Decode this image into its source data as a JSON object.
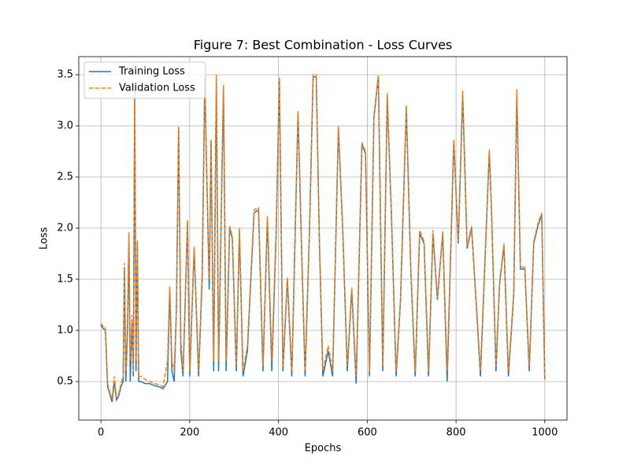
{
  "chart_data": {
    "type": "line",
    "title": "Figure 7: Best Combination - Loss Curves",
    "x_label": "Epochs",
    "y_label": "Loss",
    "x": [
      0,
      5,
      10,
      15,
      20,
      25,
      30,
      35,
      40,
      45,
      50,
      53,
      56,
      60,
      63,
      66,
      70,
      73,
      76,
      79,
      82,
      85,
      90,
      100,
      110,
      120,
      130,
      140,
      150,
      155,
      160,
      165,
      170,
      175,
      180,
      185,
      195,
      200,
      210,
      220,
      228,
      234,
      238,
      244,
      248,
      254,
      260,
      265,
      276,
      282,
      290,
      296,
      305,
      312,
      320,
      330,
      345,
      355,
      365,
      375,
      385,
      395,
      402,
      410,
      420,
      430,
      444,
      452,
      460,
      470,
      478,
      485,
      492,
      500,
      512,
      522,
      535,
      545,
      555,
      565,
      575,
      588,
      596,
      605,
      615,
      625,
      635,
      645,
      655,
      665,
      675,
      688,
      698,
      708,
      718,
      728,
      738,
      748,
      758,
      770,
      780,
      795,
      805,
      815,
      825,
      835,
      845,
      855,
      875,
      880,
      890,
      898,
      908,
      918,
      930,
      937,
      945,
      955,
      965,
      975,
      985,
      993,
      1000
    ],
    "series": [
      {
        "name": "Training Loss",
        "color": "#1f77b4",
        "dash": false,
        "values": [
          1.05,
          1.02,
          1.0,
          0.45,
          0.38,
          0.3,
          0.5,
          0.32,
          0.36,
          0.45,
          0.5,
          1.62,
          0.5,
          1.0,
          1.93,
          0.5,
          1.1,
          0.55,
          3.35,
          0.6,
          1.86,
          0.5,
          0.5,
          0.48,
          0.48,
          0.46,
          0.45,
          0.43,
          0.5,
          1.4,
          0.6,
          0.5,
          1.2,
          2.98,
          0.8,
          0.55,
          2.06,
          0.55,
          1.8,
          0.55,
          1.5,
          3.45,
          2.6,
          1.4,
          2.86,
          0.6,
          3.48,
          0.6,
          3.38,
          0.6,
          2.0,
          1.9,
          0.6,
          1.98,
          0.55,
          0.8,
          2.15,
          2.18,
          0.6,
          2.1,
          0.6,
          2.0,
          3.45,
          0.6,
          1.5,
          0.55,
          3.12,
          1.8,
          0.55,
          2.0,
          3.48,
          3.48,
          1.9,
          0.55,
          0.8,
          0.55,
          2.98,
          1.95,
          0.6,
          1.4,
          0.48,
          2.82,
          2.73,
          0.55,
          3.08,
          3.48,
          0.6,
          3.3,
          2.05,
          0.55,
          1.3,
          3.18,
          1.6,
          0.55,
          1.95,
          1.85,
          0.55,
          1.95,
          1.3,
          1.95,
          0.5,
          2.85,
          1.85,
          3.3,
          1.8,
          2.0,
          1.3,
          0.55,
          2.75,
          2.15,
          0.6,
          1.45,
          1.83,
          0.55,
          1.35,
          3.33,
          1.6,
          1.6,
          0.6,
          1.85,
          2.03,
          2.13,
          0.52
        ]
      },
      {
        "name": "Validation Loss",
        "color": "#ff7f0e",
        "dash": true,
        "values": [
          1.07,
          1.04,
          1.03,
          0.48,
          0.4,
          0.33,
          0.55,
          0.35,
          0.38,
          0.48,
          0.55,
          1.66,
          0.6,
          1.1,
          1.96,
          0.7,
          1.15,
          0.6,
          3.4,
          0.7,
          1.88,
          0.55,
          0.55,
          0.52,
          0.5,
          0.48,
          0.47,
          0.45,
          0.7,
          1.43,
          0.7,
          0.6,
          1.2,
          3.0,
          0.9,
          0.6,
          2.08,
          0.6,
          1.82,
          0.6,
          1.55,
          3.48,
          2.6,
          1.5,
          2.87,
          0.7,
          3.5,
          0.7,
          3.4,
          0.7,
          2.02,
          1.92,
          0.65,
          2.0,
          0.6,
          0.85,
          2.18,
          2.2,
          0.65,
          2.12,
          0.7,
          2.02,
          3.48,
          0.65,
          1.52,
          0.6,
          3.15,
          1.82,
          0.6,
          2.02,
          3.5,
          3.5,
          1.92,
          0.6,
          0.85,
          0.6,
          3.0,
          1.98,
          0.65,
          1.42,
          0.55,
          2.84,
          2.75,
          0.6,
          3.1,
          3.5,
          0.65,
          3.32,
          2.07,
          0.6,
          1.32,
          3.2,
          1.62,
          0.6,
          1.98,
          1.87,
          0.6,
          1.98,
          1.32,
          1.97,
          0.6,
          2.87,
          1.87,
          3.35,
          1.82,
          2.02,
          1.32,
          0.6,
          2.77,
          2.17,
          0.65,
          1.47,
          1.85,
          0.6,
          1.37,
          3.36,
          1.62,
          1.62,
          0.65,
          1.87,
          2.05,
          2.15,
          0.52
        ]
      }
    ],
    "xlim": [
      -50,
      1050
    ],
    "xticks": [
      0,
      200,
      400,
      600,
      800,
      1000
    ],
    "ylim": [
      0.123,
      3.677
    ],
    "yticks": [
      0.5,
      {
        "value": 1,
        "label": "1.0"
      },
      1.5,
      {
        "value": 2,
        "label": "2.0"
      },
      2.5,
      {
        "value": 3,
        "label": "3.0"
      },
      3.5
    ],
    "grid": true,
    "legend": "upper-left"
  }
}
